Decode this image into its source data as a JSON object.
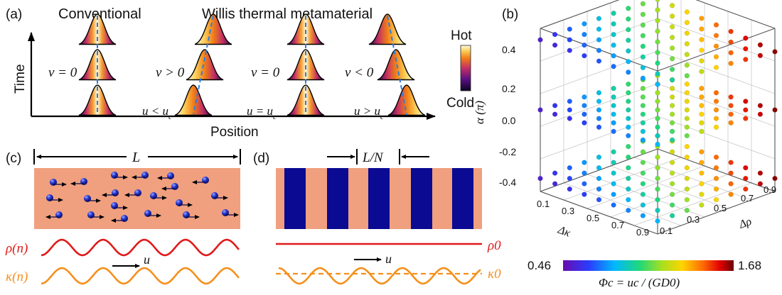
{
  "panel_a": {
    "label": "(a)",
    "conventional": "Conventional",
    "willis": "Willis thermal metamaterial",
    "time_axis": "Time",
    "position_axis": "Position",
    "colorbar_hot": "Hot",
    "colorbar_cold": "Cold",
    "v_labels": [
      "v = 0",
      "v > 0",
      "v = 0",
      "v < 0"
    ],
    "u_labels": [
      "u < u",
      "u = u",
      "u > u"
    ],
    "u_subscript": "c"
  },
  "panel_b": {
    "label": "(b)",
    "z_label": "α (π)",
    "z_ticks": [
      "0.4",
      "0.2",
      "0.0",
      "-0.2",
      "-0.4"
    ],
    "x_label": "Δκ",
    "x_ticks": [
      "0.1",
      "0.3",
      "0.5",
      "0.7",
      "0.9"
    ],
    "y_label": "Δρ",
    "y_ticks": [
      "0.1",
      "0.3",
      "0.5",
      "0.7",
      "0.9"
    ],
    "colorbar_min": "0.46",
    "colorbar_max": "1.68",
    "colorbar_title": "Φc = uc / (GD0)"
  },
  "panel_c": {
    "label": "(c)",
    "length": "L",
    "rho": "ρ(n)",
    "kappa": "κ(n)",
    "u": "u"
  },
  "panel_d": {
    "label": "(d)",
    "period": "L/N",
    "rho0": "ρ0",
    "kappa0": "κ0",
    "u": "u"
  },
  "colors": {
    "salmon": "#f0a07e",
    "navy": "#0a0a92",
    "red_curve": "#e01a1a",
    "orange_curve": "#f5901c",
    "dashed_line": "#2f7de0"
  }
}
